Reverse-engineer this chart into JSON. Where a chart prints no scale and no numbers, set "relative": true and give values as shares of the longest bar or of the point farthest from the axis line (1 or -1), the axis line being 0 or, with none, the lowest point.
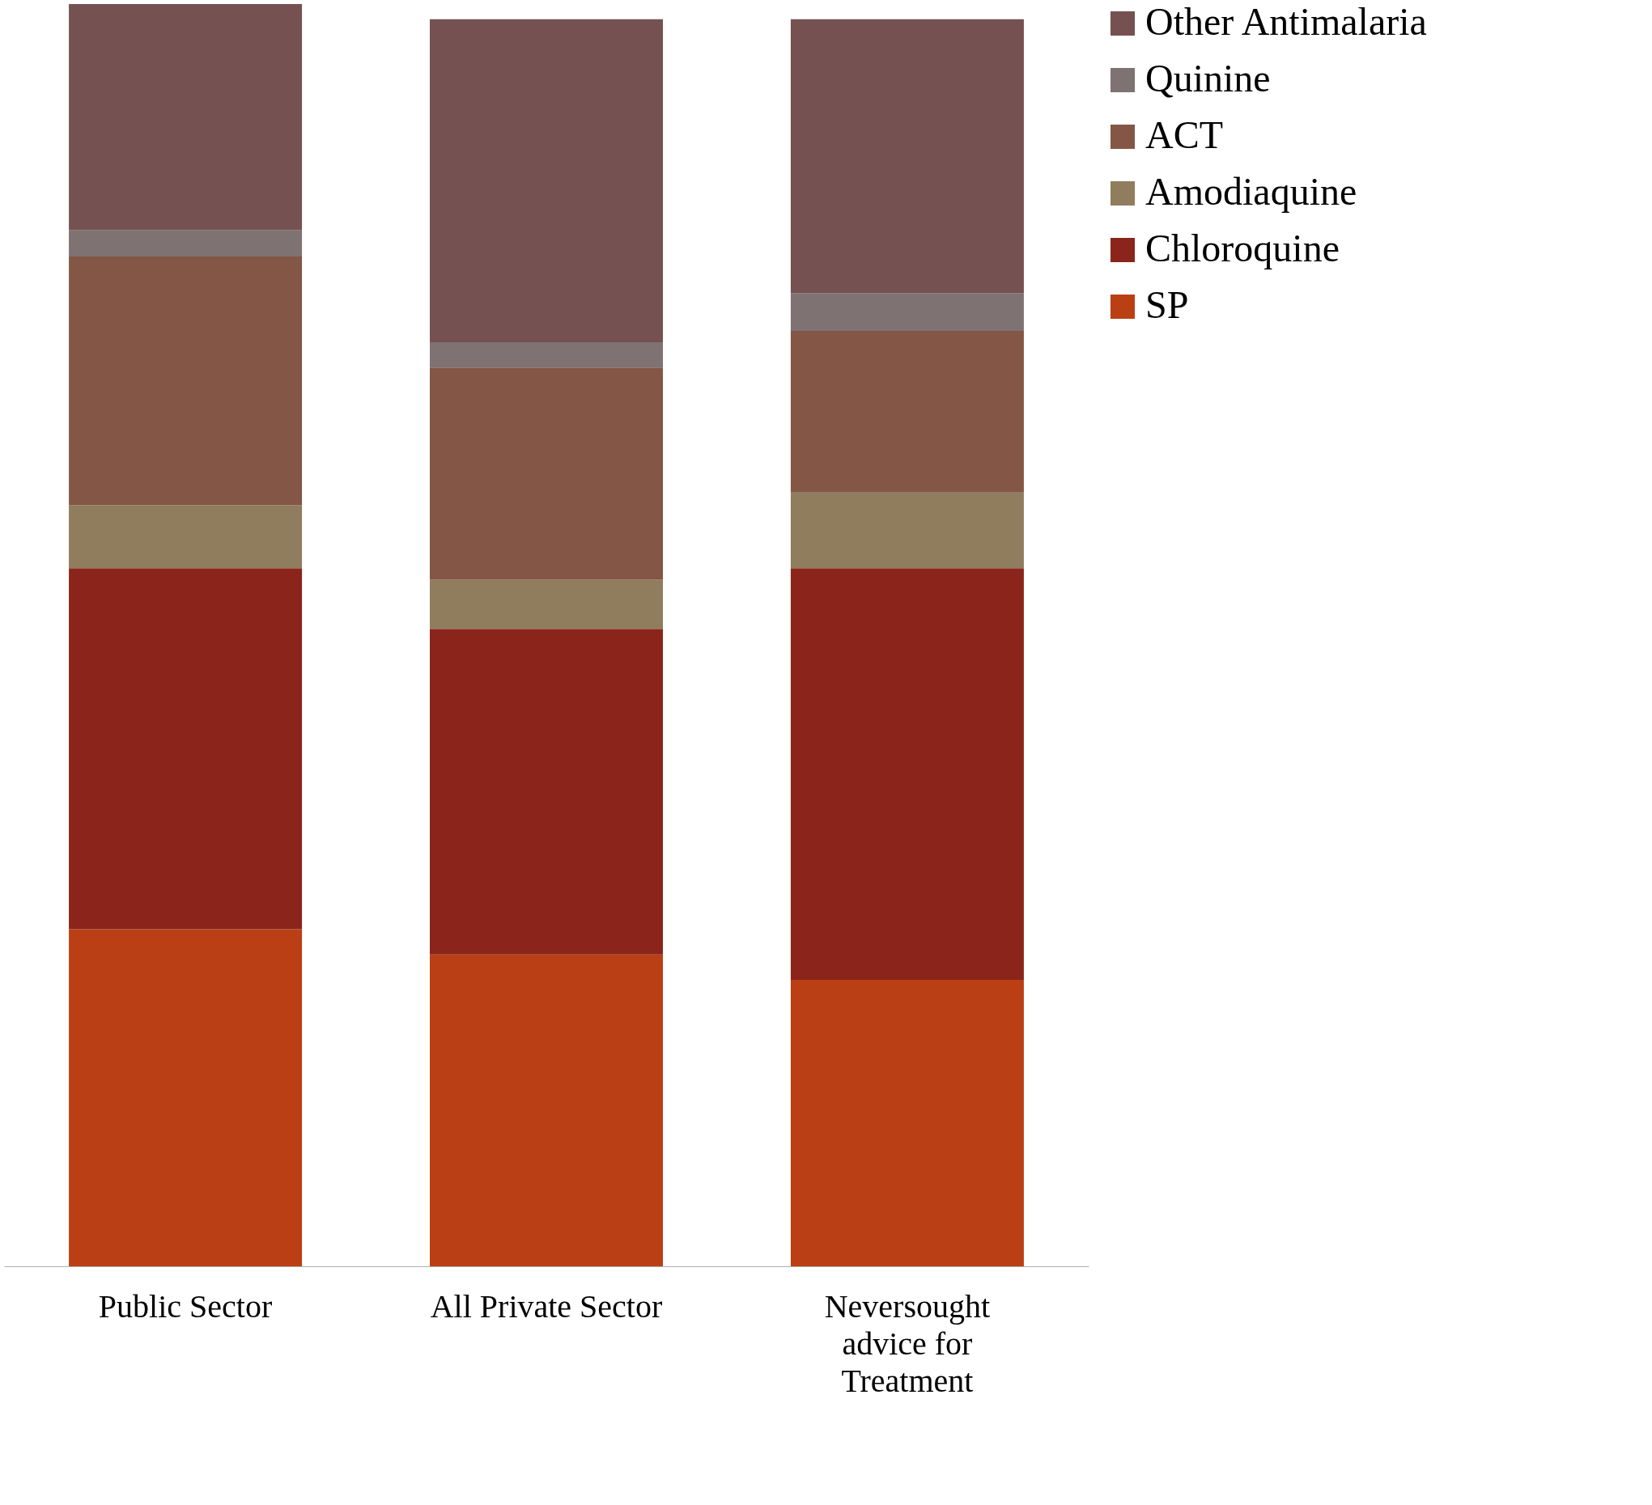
{
  "chart_data": {
    "type": "bar",
    "stacked": true,
    "relative": true,
    "legend": "right",
    "categories": [
      "Public Sector",
      "All Private Sector",
      "Neversought advice for Treatment"
    ],
    "series": [
      {
        "name": "SP",
        "color": "#bb3f15",
        "values": [
          0.267,
          0.247,
          0.227
        ]
      },
      {
        "name": "Chloroquine",
        "color": "#8b251b",
        "values": [
          0.286,
          0.258,
          0.326
        ]
      },
      {
        "name": "Amodiaquine",
        "color": "#8f7d5d",
        "values": [
          0.05,
          0.039,
          0.06
        ]
      },
      {
        "name": "ACT",
        "color": "#835646",
        "values": [
          0.197,
          0.168,
          0.128
        ]
      },
      {
        "name": "Quinine",
        "color": "#7e7273",
        "values": [
          0.021,
          0.02,
          0.03
        ]
      },
      {
        "name": "Other Antimalaria",
        "color": "#755151",
        "values": [
          0.179,
          0.256,
          0.217
        ]
      }
    ]
  }
}
